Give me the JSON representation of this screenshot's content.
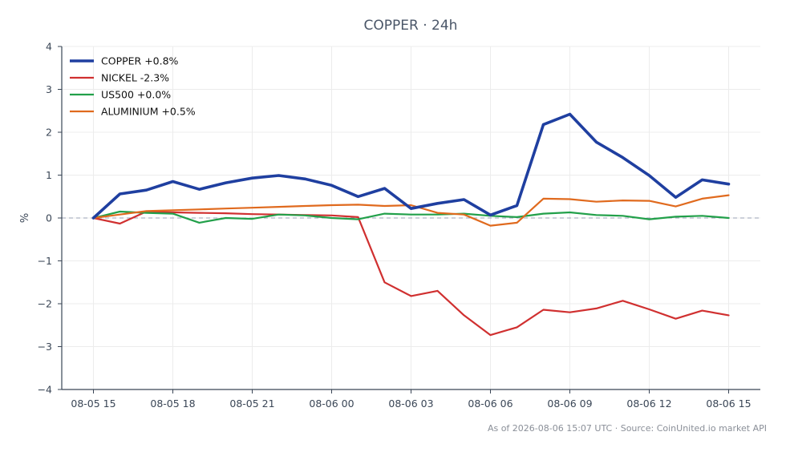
{
  "chart_data": {
    "type": "line",
    "title": "COPPER · 24h",
    "xlabel": "",
    "ylabel": "%",
    "ylim": [
      -4,
      4
    ],
    "yticks": [
      4,
      3,
      2,
      1,
      0,
      -1,
      -2,
      -3,
      -4
    ],
    "ytick_labels": [
      "4",
      "3",
      "2",
      "1",
      "0",
      "−1",
      "−2",
      "−3",
      "−4"
    ],
    "x": [
      "08-05 15:00",
      "08-05 16:00",
      "08-05 17:00",
      "08-05 18:00",
      "08-05 19:00",
      "08-05 20:00",
      "08-05 21:00",
      "08-05 22:00",
      "08-05 23:00",
      "08-06 00:00",
      "08-06 01:00",
      "08-06 02:00",
      "08-06 03:00",
      "08-06 04:00",
      "08-06 05:00",
      "08-06 06:00",
      "08-06 07:00",
      "08-06 08:00",
      "08-06 09:00",
      "08-06 10:00",
      "08-06 11:00",
      "08-06 12:00",
      "08-06 13:00",
      "08-06 14:00",
      "08-06 15:00"
    ],
    "xtick_labels": [
      "08-05 15",
      "08-05 18",
      "08-05 21",
      "08-06 00",
      "08-06 03",
      "08-06 06",
      "08-06 09",
      "08-06 12",
      "08-06 15"
    ],
    "xtick_indices": [
      0,
      3,
      6,
      9,
      12,
      15,
      18,
      21,
      24
    ],
    "grid": true,
    "zero_line": true,
    "legend_position": "top-left",
    "series": [
      {
        "name": "COPPER +0.8%",
        "color": "#1f3fa0",
        "width": 3.6,
        "values": [
          0.0,
          0.56,
          0.65,
          0.85,
          0.67,
          0.82,
          0.93,
          0.99,
          0.91,
          0.76,
          0.5,
          0.69,
          0.22,
          0.34,
          0.43,
          0.07,
          0.29,
          2.18,
          2.42,
          1.77,
          1.41,
          0.99,
          0.48,
          0.89,
          0.79
        ]
      },
      {
        "name": "NICKEL -2.3%",
        "color": "#d03030",
        "width": 2.2,
        "values": [
          0.0,
          -0.13,
          0.15,
          0.13,
          0.12,
          0.11,
          0.09,
          0.08,
          0.07,
          0.06,
          0.02,
          -1.5,
          -1.82,
          -1.7,
          -2.27,
          -2.73,
          -2.55,
          -2.14,
          -2.2,
          -2.11,
          -1.93,
          -2.13,
          -2.35,
          -2.16,
          -2.27
        ]
      },
      {
        "name": "US500 +0.0%",
        "color": "#22a04a",
        "width": 2.2,
        "values": [
          0.0,
          0.15,
          0.12,
          0.1,
          -0.11,
          0.0,
          -0.02,
          0.08,
          0.06,
          0.0,
          -0.03,
          0.1,
          0.08,
          0.08,
          0.1,
          0.05,
          0.02,
          0.1,
          0.13,
          0.07,
          0.05,
          -0.03,
          0.03,
          0.05,
          0.0
        ]
      },
      {
        "name": "ALUMINIUM +0.5%",
        "color": "#e06a1e",
        "width": 2.2,
        "values": [
          0.0,
          0.08,
          0.16,
          0.18,
          0.2,
          0.22,
          0.24,
          0.26,
          0.28,
          0.3,
          0.31,
          0.28,
          0.3,
          0.12,
          0.08,
          -0.18,
          -0.11,
          0.45,
          0.44,
          0.38,
          0.41,
          0.4,
          0.27,
          0.45,
          0.53
        ]
      }
    ],
    "footer": "As of 2026-08-06 15:07 UTC · Source: CoinUnited.io market API"
  }
}
